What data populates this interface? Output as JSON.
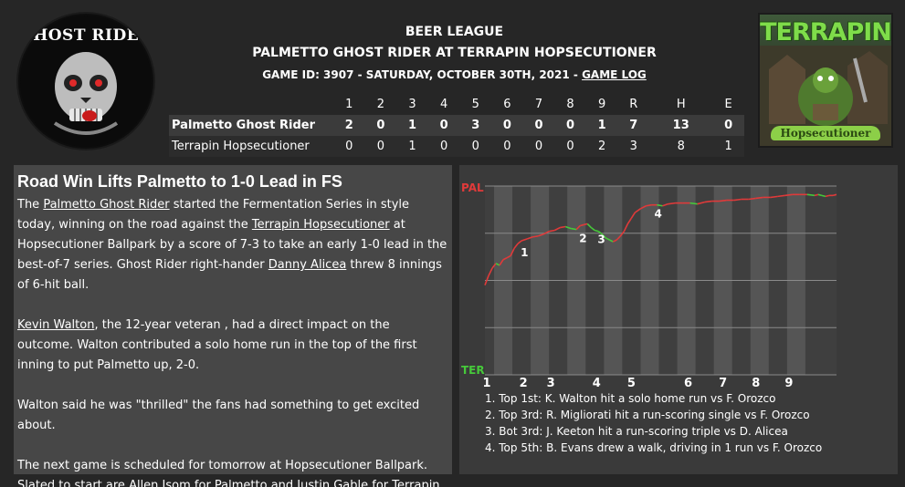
{
  "header": {
    "league": "BEER LEAGUE",
    "matchup": "PALMETTO GHOST RIDER AT TERRAPIN HOPSECUTIONER",
    "game_info": "GAME ID: 3907  - SATURDAY, OCTOBER 30TH, 2021 - ",
    "game_log_link": "GAME LOG"
  },
  "logos": {
    "away_name": "GHOST RIDER",
    "home_name": "TERRAPIN",
    "home_sub": "Hopsecutioner"
  },
  "linescore": {
    "columns": [
      "1",
      "2",
      "3",
      "4",
      "5",
      "6",
      "7",
      "8",
      "9",
      "R",
      "H",
      "E"
    ],
    "rows": [
      {
        "team": "Palmetto Ghost Rider",
        "values": [
          "2",
          "0",
          "1",
          "0",
          "3",
          "0",
          "0",
          "0",
          "1",
          "7",
          "13",
          "0"
        ]
      },
      {
        "team": "Terrapin Hopsecutioner",
        "values": [
          "0",
          "0",
          "1",
          "0",
          "0",
          "0",
          "0",
          "0",
          "2",
          "3",
          "8",
          "1"
        ]
      }
    ]
  },
  "story": {
    "headline": "Road Win Lifts Palmetto to 1-0 Lead in FS",
    "p1": {
      "t1": "The ",
      "l1": "Palmetto Ghost Rider",
      "t2": " started the Fermentation Series in style today, winning on the road against the ",
      "l2": "Terrapin Hopsecutioner",
      "t3": " at Hopsecutioner Ballpark by a score of 7-3 to take an early 1-0 lead in the best-of-7 series. Ghost Rider right-hander ",
      "l3": "Danny Alicea",
      "t4": " threw 8 innings of 6-hit ball."
    },
    "p2": {
      "l1": "Kevin Walton",
      "t1": ", the 12-year veteran , had a direct impact on the outcome. Walton contributed a solo home run in the top of the first inning to put Palmetto up, 2-0."
    },
    "p3": "Walton said he was \"thrilled\" the fans had something to get excited about.",
    "p4": {
      "t1": "The next game is scheduled for tomorrow at Hopsecutioner Ballpark. Slated to start are ",
      "l1": "Allen Isom",
      "t2": " for Palmetto and ",
      "l2": "Justin Gable",
      "t3": " for Terrapin."
    }
  },
  "chart_data": {
    "type": "line",
    "top_label": "PAL",
    "bottom_label": "TER",
    "top_color": "#e03a3a",
    "bottom_color": "#46c93a",
    "x_labels": [
      "1",
      "2",
      "3",
      "4",
      "5",
      "6",
      "7",
      "8",
      "9"
    ],
    "x": [
      0,
      0.1,
      0.2,
      0.3,
      0.4,
      0.5,
      0.6,
      0.7,
      0.8,
      0.9,
      1.0,
      1.15,
      1.3,
      1.45,
      1.6,
      1.75,
      1.9,
      2.05,
      2.2,
      2.35,
      2.5,
      2.6,
      2.7,
      2.8,
      2.9,
      3.0,
      3.1,
      3.2,
      3.3,
      3.4,
      3.5,
      3.6,
      3.7,
      3.8,
      3.9,
      4.0,
      4.1,
      4.25,
      4.4,
      4.55,
      4.7,
      4.85,
      5.0,
      5.2,
      5.4,
      5.6,
      5.8,
      6.0,
      6.2,
      6.4,
      6.6,
      6.8,
      7.0,
      7.2,
      7.4,
      7.6,
      7.8,
      8.0,
      8.2,
      8.4,
      8.6,
      8.8,
      9.0,
      9.1,
      9.2,
      9.3,
      9.4,
      9.5,
      9.6
    ],
    "y": [
      -0.05,
      0.05,
      0.13,
      0.18,
      0.16,
      0.22,
      0.24,
      0.26,
      0.34,
      0.39,
      0.42,
      0.44,
      0.46,
      0.47,
      0.49,
      0.52,
      0.53,
      0.56,
      0.57,
      0.55,
      0.54,
      0.58,
      0.59,
      0.6,
      0.56,
      0.53,
      0.52,
      0.49,
      0.45,
      0.43,
      0.41,
      0.43,
      0.47,
      0.52,
      0.6,
      0.66,
      0.72,
      0.76,
      0.79,
      0.8,
      0.8,
      0.79,
      0.81,
      0.82,
      0.82,
      0.82,
      0.81,
      0.83,
      0.84,
      0.84,
      0.85,
      0.85,
      0.86,
      0.86,
      0.87,
      0.88,
      0.88,
      0.89,
      0.9,
      0.91,
      0.91,
      0.91,
      0.9,
      0.91,
      0.9,
      0.89,
      0.9,
      0.9,
      0.91
    ],
    "annotations": [
      {
        "label": "1",
        "x": 0.9,
        "y": 0.39
      },
      {
        "label": "2",
        "x": 2.5,
        "y": 0.54
      },
      {
        "label": "3",
        "x": 3.0,
        "y": 0.53
      },
      {
        "label": "4",
        "x": 4.55,
        "y": 0.8
      }
    ],
    "notes": [
      "1. Top 1st: K. Walton hit a solo home run vs F. Orozco",
      "2. Top 3rd: R. Migliorati hit a run-scoring single vs F. Orozco",
      "3. Bot 3rd: J. Keeton hit a run-scoring triple vs D. Alicea",
      "4. Top 5th: B. Evans drew a walk, driving in 1 run vs F. Orozco"
    ]
  }
}
